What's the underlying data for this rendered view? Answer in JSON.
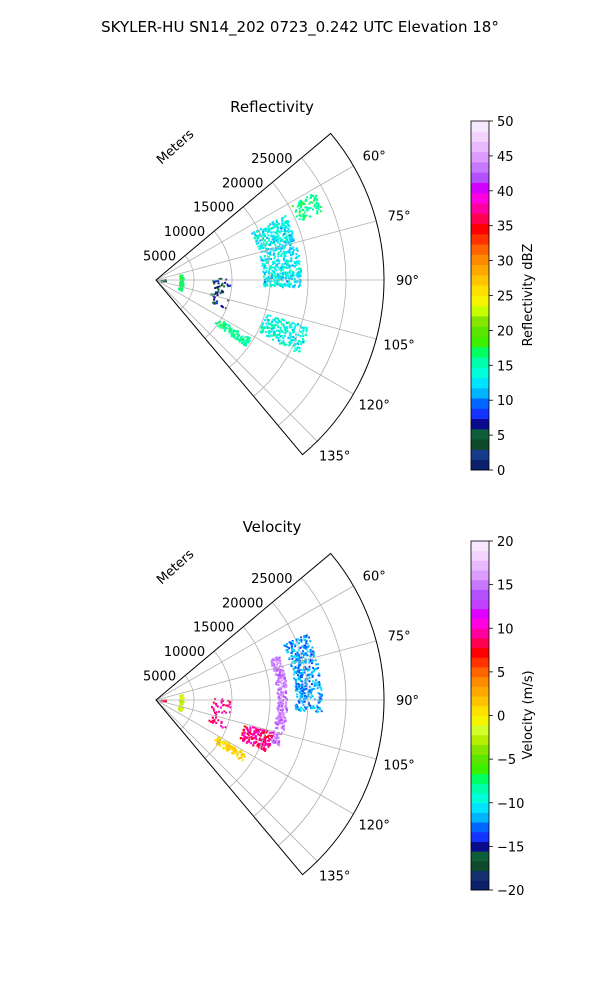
{
  "suptitle": "SKYLER-HU  SN14_202  0723_0.242 UTC Elevation 18°",
  "colors": {
    "reflectivity_cmap": [
      "#0b1f6b",
      "#183a8a",
      "#0c4a2a",
      "#0f5e3a",
      "#0a0a8c",
      "#1433ff",
      "#0066ff",
      "#00b4ff",
      "#00e4ff",
      "#00ffd8",
      "#00ffaa",
      "#00ff60",
      "#3cf000",
      "#5ae600",
      "#86e600",
      "#c8ff00",
      "#f5f500",
      "#ffe100",
      "#ffc400",
      "#ffa800",
      "#ff8c00",
      "#ff6400",
      "#ff3200",
      "#ff0000",
      "#ff0050",
      "#ff00a0",
      "#ff00e0",
      "#d200ff",
      "#b450ff",
      "#c878ff",
      "#dc9cff",
      "#eab8ff",
      "#f2d4ff",
      "#f8e8ff"
    ],
    "velocity_cmap": [
      "#0b1f6b",
      "#14306e",
      "#0c4a2a",
      "#0f5e3a",
      "#0a0a8c",
      "#1433ff",
      "#0066ff",
      "#00b4ff",
      "#00e4ff",
      "#00ffd8",
      "#00ffaa",
      "#00ff60",
      "#3cf000",
      "#5ae600",
      "#86e600",
      "#b4f000",
      "#d2ff28",
      "#f5f500",
      "#ffe100",
      "#ffc400",
      "#ffa800",
      "#ff8c00",
      "#ff6400",
      "#ff3200",
      "#ff0000",
      "#ff0050",
      "#ff00a0",
      "#ff00e0",
      "#e000ff",
      "#c040ff",
      "#b450ff",
      "#c878ff",
      "#dc9cff",
      "#eab8ff",
      "#f2d4ff",
      "#f8e8ff"
    ]
  },
  "chart_data": [
    {
      "type": "polar-sector",
      "title": "Reflectivity",
      "radial_label": "Meters",
      "radial_ticks": [
        5000,
        10000,
        15000,
        20000,
        25000
      ],
      "radial_tick_labels": [
        "5000",
        "10000",
        "15000",
        "20000",
        "25000"
      ],
      "rmax": 30000,
      "theta_range_deg": [
        50,
        140
      ],
      "theta_tick_labels": [
        "60°",
        "75°",
        "90°",
        "105°",
        "120°",
        "135°"
      ],
      "theta_ticks_deg": [
        60,
        75,
        90,
        105,
        120,
        135
      ],
      "grid": true,
      "colorbar": {
        "label": "Reflectivity dBZ",
        "range": [
          0,
          50
        ],
        "ticks": [
          "0",
          "5",
          "10",
          "15",
          "20",
          "25",
          "30",
          "35",
          "40",
          "45",
          "50"
        ]
      },
      "echo_clusters": [
        {
          "r": 16500,
          "theta": 78,
          "dr": 5000,
          "dtheta": 30,
          "density": 0.55,
          "value": 13,
          "spread": 4
        },
        {
          "r": 22000,
          "theta": 64,
          "dr": 3500,
          "dtheta": 7,
          "density": 0.5,
          "value": 16,
          "spread": 3
        },
        {
          "r": 18000,
          "theta": 112,
          "dr": 6000,
          "dtheta": 10,
          "density": 0.5,
          "value": 14,
          "spread": 4
        },
        {
          "r": 12000,
          "theta": 124,
          "dr": 5000,
          "dtheta": 5,
          "density": 0.55,
          "value": 16,
          "spread": 3
        },
        {
          "r": 3300,
          "theta": 95,
          "dr": 500,
          "dtheta": 36,
          "density": 0.5,
          "value": 17,
          "spread": 3
        },
        {
          "r": 900,
          "theta": 90,
          "dr": 600,
          "dtheta": 12,
          "density": 0.4,
          "value": 5,
          "spread": 2
        },
        {
          "r": 8500,
          "theta": 100,
          "dr": 2500,
          "dtheta": 24,
          "density": 0.12,
          "value": 6,
          "spread": 4
        }
      ]
    },
    {
      "type": "polar-sector",
      "title": "Velocity",
      "radial_label": "Meters",
      "radial_ticks": [
        5000,
        10000,
        15000,
        20000,
        25000
      ],
      "radial_tick_labels": [
        "5000",
        "10000",
        "15000",
        "20000",
        "25000"
      ],
      "rmax": 30000,
      "theta_range_deg": [
        50,
        140
      ],
      "theta_tick_labels": [
        "60°",
        "75°",
        "90°",
        "105°",
        "120°",
        "135°"
      ],
      "theta_ticks_deg": [
        60,
        75,
        90,
        105,
        120,
        135
      ],
      "grid": true,
      "colorbar": {
        "label": "Velocity (m/s)",
        "range": [
          -20,
          20
        ],
        "ticks": [
          "−20",
          "−15",
          "−10",
          "−5",
          "0",
          "5",
          "10",
          "15",
          "20"
        ]
      },
      "echo_clusters": [
        {
          "r": 20000,
          "theta": 80,
          "dr": 3500,
          "dtheta": 28,
          "density": 0.55,
          "value": -12,
          "spread": 3
        },
        {
          "r": 16500,
          "theta": 90,
          "dr": 1300,
          "dtheta": 40,
          "density": 0.75,
          "value": 15,
          "spread": 2
        },
        {
          "r": 14000,
          "theta": 110,
          "dr": 4000,
          "dtheta": 10,
          "density": 0.6,
          "value": 9,
          "spread": 3
        },
        {
          "r": 11500,
          "theta": 123,
          "dr": 4500,
          "dtheta": 5,
          "density": 0.6,
          "value": 1,
          "spread": 2
        },
        {
          "r": 3300,
          "theta": 95,
          "dr": 500,
          "dtheta": 36,
          "density": 0.5,
          "value": -2,
          "spread": 3
        },
        {
          "r": 900,
          "theta": 90,
          "dr": 600,
          "dtheta": 12,
          "density": 0.4,
          "value": 8,
          "spread": 2
        },
        {
          "r": 8500,
          "theta": 100,
          "dr": 2500,
          "dtheta": 24,
          "density": 0.12,
          "value": 9,
          "spread": 3
        }
      ]
    }
  ]
}
